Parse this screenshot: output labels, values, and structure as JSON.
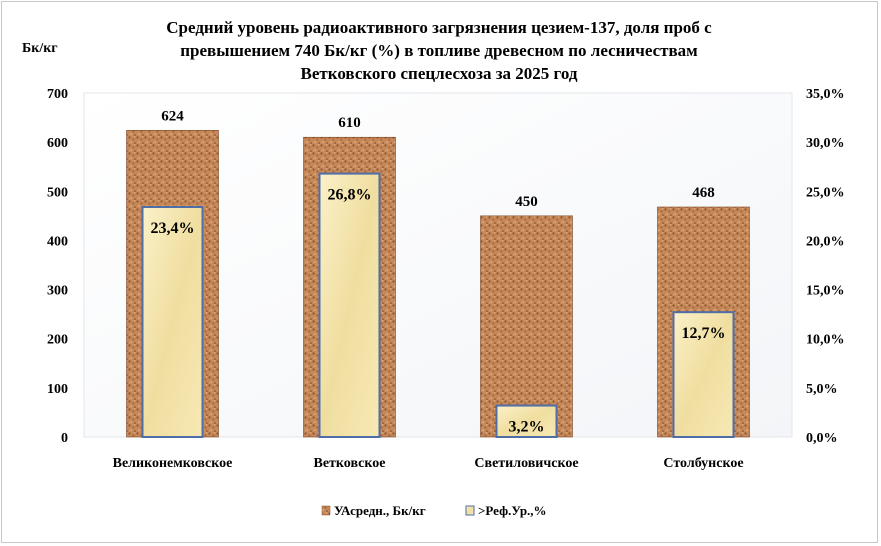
{
  "chart_data": {
    "type": "bar",
    "title_lines": [
      "Средний уровень радиоактивного загрязнения цезием-137, доля проб с",
      "превышением 740 Бк/кг (%) в топливе древесном по лесничествам",
      "Ветковского спецлесхоза за 2025 год"
    ],
    "ylabel_left": "Бк/кг",
    "categories": [
      "Великонемковское",
      "Ветковское",
      "Светиловичское",
      "Столбунское"
    ],
    "series": [
      {
        "name": "УАсредн., Бк/кг",
        "axis": "left",
        "values": [
          624,
          610,
          450,
          468
        ],
        "labels": [
          "624",
          "610",
          "450",
          "468"
        ]
      },
      {
        "name": ">Реф.Ур.,%",
        "axis": "right",
        "values": [
          23.4,
          26.8,
          3.2,
          12.7
        ],
        "labels": [
          "23,4%",
          "26,8%",
          "3,2%",
          "12,7%"
        ]
      }
    ],
    "ylim_left": [
      0,
      700
    ],
    "yticks_left": [
      "0",
      "100",
      "200",
      "300",
      "400",
      "500",
      "600",
      "700"
    ],
    "ylim_right": [
      0,
      35
    ],
    "yticks_right": [
      "0,0%",
      "5,0%",
      "10,0%",
      "15,0%",
      "20,0%",
      "25,0%",
      "30,0%",
      "35,0%"
    ],
    "grid": false,
    "legend_position": "bottom",
    "colors": {
      "series1": "#c8895a",
      "series1_dark": "#8a5530",
      "series2": "#f2e2a8",
      "series2_border": "#4f6ea8"
    }
  }
}
